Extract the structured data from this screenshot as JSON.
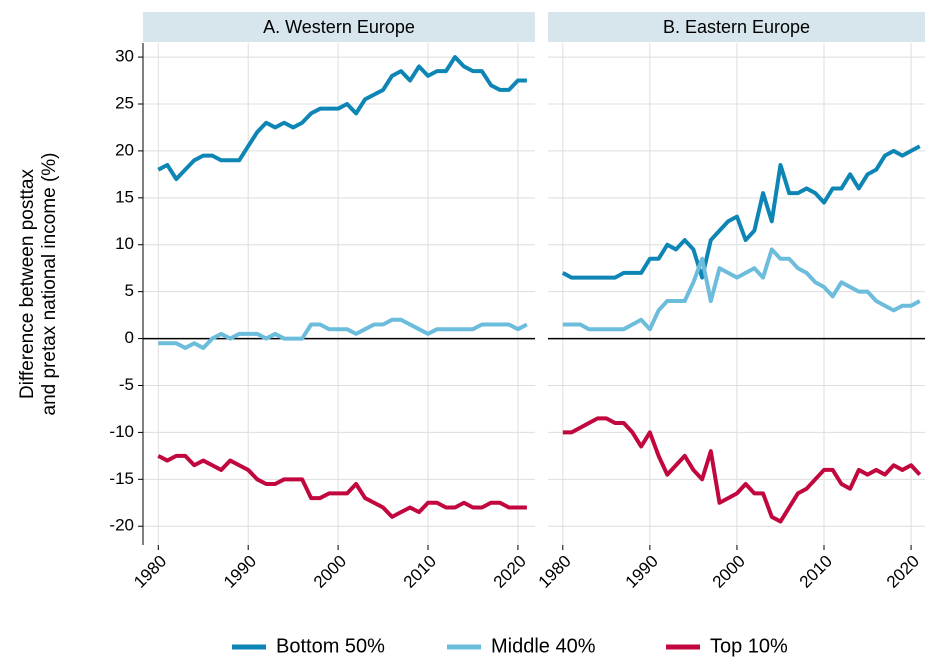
{
  "chart_data": [
    {
      "type": "line",
      "title": "A. Western Europe",
      "ylabel": [
        "Difference between posttax",
        "and pretax national income (%)"
      ],
      "x": [
        1980,
        1981,
        1982,
        1983,
        1984,
        1985,
        1986,
        1987,
        1988,
        1989,
        1990,
        1991,
        1992,
        1993,
        1994,
        1995,
        1996,
        1997,
        1998,
        1999,
        2000,
        2001,
        2002,
        2003,
        2004,
        2005,
        2006,
        2007,
        2008,
        2009,
        2010,
        2011,
        2012,
        2013,
        2014,
        2015,
        2016,
        2017,
        2018,
        2019,
        2020,
        2021
      ],
      "xlim": [
        1978.3,
        2021.9
      ],
      "xticks": [
        1980,
        1990,
        2000,
        2010,
        2020
      ],
      "ylim": [
        -22,
        31.5
      ],
      "yticks": [
        -20,
        -15,
        -10,
        -5,
        0,
        5,
        10,
        15,
        20,
        25,
        30
      ],
      "grid": true,
      "hline": 0,
      "series": [
        {
          "name": "Bottom 50%",
          "color": "#0e86b5",
          "values": [
            18,
            18.5,
            17,
            18,
            19,
            19.5,
            19.5,
            19,
            19,
            19,
            20.5,
            22,
            23,
            22.5,
            23,
            22.5,
            23,
            24,
            24.5,
            24.5,
            24.5,
            25,
            24,
            25.5,
            26,
            26.5,
            28,
            28.5,
            27.5,
            29,
            28,
            28.5,
            28.5,
            30,
            29,
            28.5,
            28.5,
            27,
            26.5,
            26.5,
            27.5,
            27.5
          ]
        },
        {
          "name": "Middle 40%",
          "color": "#6cbcdc",
          "values": [
            -0.5,
            -0.5,
            -0.5,
            -1,
            -0.5,
            -1,
            0,
            0.5,
            0,
            0.5,
            0.5,
            0.5,
            0,
            0.5,
            0,
            0,
            0,
            1.5,
            1.5,
            1,
            1,
            1,
            0.5,
            1,
            1.5,
            1.5,
            2,
            2,
            1.5,
            1,
            0.5,
            1,
            1,
            1,
            1,
            1,
            1.5,
            1.5,
            1.5,
            1.5,
            1,
            1.5
          ]
        },
        {
          "name": "Top 10%",
          "color": "#c1073d",
          "values": [
            -12.5,
            -13,
            -12.5,
            -12.5,
            -13.5,
            -13,
            -13.5,
            -14,
            -13,
            -13.5,
            -14,
            -15,
            -15.5,
            -15.5,
            -15,
            -15,
            -15,
            -17,
            -17,
            -16.5,
            -16.5,
            -16.5,
            -15.5,
            -17,
            -17.5,
            -18,
            -19,
            -18.5,
            -18,
            -18.5,
            -17.5,
            -17.5,
            -18,
            -18,
            -17.5,
            -18,
            -18,
            -17.5,
            -17.5,
            -18,
            -18,
            -18
          ]
        }
      ]
    },
    {
      "type": "line",
      "title": "B. Eastern Europe",
      "x": [
        1980,
        1981,
        1982,
        1983,
        1984,
        1985,
        1986,
        1987,
        1988,
        1989,
        1990,
        1991,
        1992,
        1993,
        1994,
        1995,
        1996,
        1997,
        1998,
        1999,
        2000,
        2001,
        2002,
        2003,
        2004,
        2005,
        2006,
        2007,
        2008,
        2009,
        2010,
        2011,
        2012,
        2013,
        2014,
        2015,
        2016,
        2017,
        2018,
        2019,
        2020,
        2021
      ],
      "xlim": [
        1978.3,
        2021.6
      ],
      "xticks": [
        1980,
        1990,
        2000,
        2010,
        2020
      ],
      "ylim": [
        -22,
        31.5
      ],
      "yticks": [
        -20,
        -15,
        -10,
        -5,
        0,
        5,
        10,
        15,
        20,
        25,
        30
      ],
      "grid": true,
      "hline": 0,
      "series": [
        {
          "color": "#0e86b5",
          "values": [
            7,
            6.5,
            6.5,
            6.5,
            6.5,
            6.5,
            6.5,
            7,
            7,
            7,
            8.5,
            8.5,
            10,
            9.5,
            10.5,
            9.5,
            6.5,
            10.5,
            11.5,
            12.5,
            13,
            10.5,
            11.5,
            15.5,
            12.5,
            18.5,
            15.5,
            15.5,
            16,
            15.5,
            14.5,
            16,
            16,
            17.5,
            16,
            17.5,
            18,
            19.5,
            20,
            19.5,
            20,
            20.5
          ]
        },
        {
          "color": "#6cbcdc",
          "values": [
            1.5,
            1.5,
            1.5,
            1,
            1,
            1,
            1,
            1,
            1.5,
            2,
            1,
            3,
            4,
            4,
            4,
            6,
            8.5,
            4,
            7.5,
            7,
            6.5,
            7,
            7.5,
            6.5,
            9.5,
            8.5,
            8.5,
            7.5,
            7,
            6,
            5.5,
            4.5,
            6,
            5.5,
            5,
            5,
            4,
            3.5,
            3,
            3.5,
            3.5,
            4
          ]
        },
        {
          "color": "#c1073d",
          "values": [
            -10,
            -10,
            -9.5,
            -9,
            -8.5,
            -8.5,
            -9,
            -9,
            -10,
            -11.5,
            -10,
            -12.5,
            -14.5,
            -13.5,
            -12.5,
            -14,
            -15,
            -12,
            -17.5,
            -17,
            -16.5,
            -15.5,
            -16.5,
            -16.5,
            -19,
            -19.5,
            -18,
            -16.5,
            -16,
            -15,
            -14,
            -14,
            -15.5,
            -16,
            -14,
            -14.5,
            -14,
            -14.5,
            -13.5,
            -14,
            -13.5,
            -14.5
          ]
        }
      ]
    }
  ]
}
